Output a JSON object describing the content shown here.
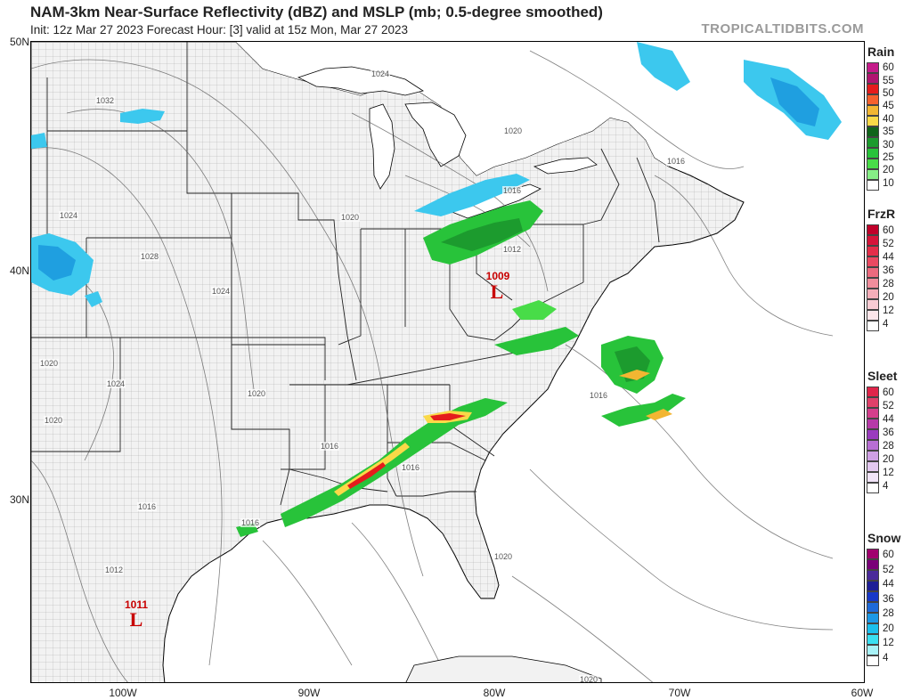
{
  "header": {
    "title": "NAM-3km Near-Surface Reflectivity (dBZ) and MSLP (mb; 0.5-degree smoothed)",
    "subtitle": "Init: 12z Mar 27 2023   Forecast Hour: [3]   valid at 15z Mon, Mar 27 2023",
    "credit": "TROPICALTIDBITS.COM"
  },
  "axes": {
    "lat_labels": [
      "50N",
      "40N",
      "30N"
    ],
    "lon_labels": [
      "100W",
      "90W",
      "80W",
      "70W",
      "60W"
    ]
  },
  "lows": [
    {
      "pressure": "1009",
      "symbol": "L"
    },
    {
      "pressure": "1011",
      "symbol": "L"
    }
  ],
  "isobar_labels": [
    "1032",
    "1024",
    "1020",
    "1016",
    "1012",
    "1028",
    "1024",
    "1020",
    "1024",
    "1020",
    "1020",
    "1016",
    "1020",
    "1016",
    "1016",
    "1016",
    "1016",
    "1012",
    "1020",
    "1020",
    "1016",
    "1024"
  ],
  "legend": [
    {
      "title": "Rain",
      "ticks": [
        "60",
        "55",
        "50",
        "45",
        "40",
        "35",
        "30",
        "25",
        "20",
        "10"
      ],
      "colors": [
        "#c51b8a",
        "#b01570",
        "#e51c1c",
        "#f5612e",
        "#f2b632",
        "#fad948",
        "#10641a",
        "#1c9b2e",
        "#28c33a",
        "#48dc48",
        "#86ee86",
        "#ffffff"
      ]
    },
    {
      "title": "FrzR",
      "ticks": [
        "60",
        "52",
        "44",
        "36",
        "28",
        "20",
        "12",
        "4"
      ],
      "colors": [
        "#c0002a",
        "#d6143a",
        "#e42e4a",
        "#ea4a62",
        "#ec6a7e",
        "#f08d9c",
        "#f5aeb9",
        "#f9ccd4",
        "#fde6ea",
        "#ffffff"
      ]
    },
    {
      "title": "Sleet",
      "ticks": [
        "60",
        "52",
        "44",
        "36",
        "28",
        "20",
        "12",
        "4"
      ],
      "colors": [
        "#e0254a",
        "#e0406a",
        "#d43e8c",
        "#b73aa8",
        "#9a3cbe",
        "#b86fd4",
        "#cfa0e4",
        "#e3c8f0",
        "#f1e4f8",
        "#ffffff"
      ]
    },
    {
      "title": "Snow",
      "ticks": [
        "60",
        "52",
        "44",
        "36",
        "28",
        "20",
        "12",
        "4"
      ],
      "colors": [
        "#a1006e",
        "#7a0078",
        "#4a2a9a",
        "#1e1e96",
        "#1838c8",
        "#1f6ad9",
        "#1c98e6",
        "#1bc0ee",
        "#3ae0f2",
        "#a8f3f8",
        "#ffffff"
      ]
    }
  ]
}
